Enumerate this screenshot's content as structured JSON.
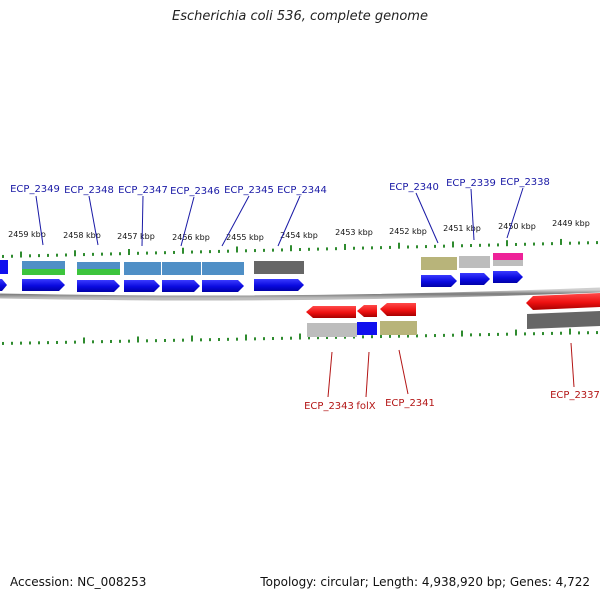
{
  "title": "Escherichia coli 536, complete genome",
  "footer": {
    "accession_text": "Accession: NC_008253",
    "summary_text": "Topology: circular; Length: 4,938,920 bp; Genes: 4,722"
  },
  "colors": {
    "cds": "#1010ee",
    "upper_label": "#1a1aa6",
    "lower_label": "#b31515",
    "tick": "#2e8b2e",
    "backbone": "#8a8a8a",
    "gene_red": "#ee1111",
    "gene_grey": "#bdbdbd",
    "gene_dark": "#666666",
    "gene_olive": "#b8b47a",
    "gene_steel": "#4f8fc6",
    "gene_green": "#3cc43c",
    "gene_pink": "#ee2299"
  },
  "kbp_ticks": [
    "2459 kbp",
    "2458 kbp",
    "2457 kbp",
    "2456 kbp",
    "2455 kbp",
    "2454 kbp",
    "2453 kbp",
    "2452 kbp",
    "2451 kbp",
    "2450 kbp",
    "2449 kbp"
  ],
  "upper_labels": [
    "ECP_2349",
    "ECP_2348",
    "ECP_2347",
    "ECP_2346",
    "ECP_2345",
    "ECP_2344",
    "ECP_2340",
    "ECP_2339",
    "ECP_2338"
  ],
  "lower_labels": [
    "ECP_2343",
    "folX",
    "ECP_2341",
    "ECP_2337"
  ]
}
